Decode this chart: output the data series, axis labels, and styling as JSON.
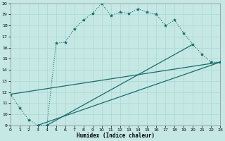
{
  "xlabel": "Humidex (Indice chaleur)",
  "xlim": [
    0,
    23
  ],
  "ylim": [
    9,
    20
  ],
  "yticks": [
    9,
    10,
    11,
    12,
    13,
    14,
    15,
    16,
    17,
    18,
    19,
    20
  ],
  "xticks": [
    0,
    1,
    2,
    3,
    4,
    5,
    6,
    7,
    8,
    9,
    10,
    11,
    12,
    13,
    14,
    15,
    16,
    17,
    18,
    19,
    20,
    21,
    22,
    23
  ],
  "bg_color": "#c5e8e5",
  "line_color": "#1a6b6b",
  "grid_color": "#aad8d4",
  "main_x": [
    0,
    1,
    2,
    3,
    4,
    5,
    6,
    7,
    8,
    9,
    10,
    11,
    12,
    13,
    14,
    15,
    16,
    17,
    18,
    19,
    20,
    21,
    22,
    23
  ],
  "main_y": [
    11.8,
    10.6,
    9.5,
    9.0,
    9.0,
    16.4,
    16.5,
    17.7,
    18.5,
    19.1,
    20.0,
    18.9,
    19.2,
    19.1,
    19.5,
    19.2,
    19.0,
    18.0,
    18.5,
    17.3,
    16.3,
    15.4,
    14.7,
    14.7
  ],
  "env_line1_x": [
    0,
    23
  ],
  "env_line1_y": [
    11.8,
    14.7
  ],
  "env_line2_x": [
    3,
    23
  ],
  "env_line2_y": [
    9.0,
    14.7
  ],
  "env_line3_x": [
    4,
    20
  ],
  "env_line3_y": [
    9.0,
    16.3
  ]
}
